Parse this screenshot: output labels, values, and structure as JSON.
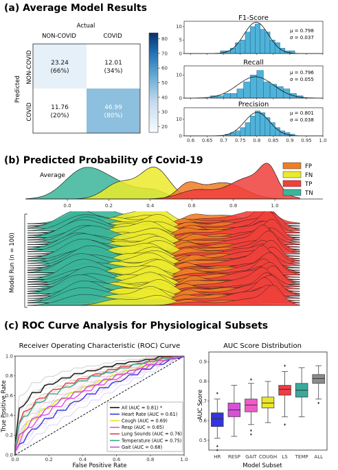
{
  "panel_a": {
    "header": "(a) Average Model Results",
    "confusion_matrix": {
      "type": "heatmap",
      "xlabel": "Actual",
      "ylabel": "Predicted",
      "columns": [
        "NON-COVID",
        "COVID"
      ],
      "rows": [
        "NON-COVID",
        "COVID"
      ],
      "values": [
        [
          23.24,
          12.01
        ],
        [
          11.76,
          46.99
        ]
      ],
      "cell_values": [
        [
          "23.24",
          "12.01"
        ],
        [
          "11.76",
          "46.99"
        ]
      ],
      "percent_labels": [
        [
          "(66%)",
          "(34%)"
        ],
        [
          "(20%)",
          "(80%)"
        ]
      ],
      "colorbar_ticks": [
        "20",
        "30",
        "40",
        "50",
        "60",
        "70",
        "80"
      ],
      "colorbar_range": [
        16,
        84
      ],
      "colors": {
        "low": "#f7fbff",
        "high": "#08306b"
      }
    },
    "histograms": {
      "type": "bar",
      "x_ticks": [
        "0.6",
        "0.65",
        "0.7",
        "0.75",
        "0.8",
        "0.85",
        "0.9",
        "0.95",
        "1.0"
      ],
      "xlim": [
        0.58,
        1.0
      ],
      "bar_color": "#4fb3d9",
      "panels": [
        {
          "title": "F1-Score",
          "mu": "μ = 0.798",
          "sigma": "σ = 0.037",
          "mean": 0.798,
          "std": 0.037,
          "bin_start": 0.69,
          "bin_width": 0.015,
          "counts": [
            1,
            1,
            2,
            4,
            5,
            8,
            10,
            11,
            9,
            8,
            5,
            4,
            2,
            1,
            1
          ],
          "y_ticks": [
            "0",
            "5",
            "10"
          ],
          "ylim": [
            0,
            12
          ]
        },
        {
          "title": "Recall",
          "mu": "μ = 0.796",
          "sigma": "σ = 0.055",
          "mean": 0.796,
          "std": 0.055,
          "bin_start": 0.66,
          "bin_width": 0.02,
          "counts": [
            1,
            1,
            2,
            2,
            4,
            7,
            10,
            12,
            7,
            6,
            5,
            4,
            2,
            1
          ],
          "y_ticks": [
            "0",
            "10"
          ],
          "ylim": [
            0,
            14
          ]
        },
        {
          "title": "Precision",
          "mu": "μ = 0.801",
          "sigma": "σ = 0.038",
          "mean": 0.801,
          "std": 0.038,
          "bin_start": 0.705,
          "bin_width": 0.015,
          "counts": [
            1,
            2,
            3,
            5,
            8,
            12,
            15,
            14,
            11,
            8,
            5,
            3,
            2,
            1
          ],
          "y_ticks": [
            "0",
            "10"
          ],
          "ylim": [
            0,
            17
          ]
        }
      ]
    }
  },
  "panel_b": {
    "header": "(b) Predicted Probability of Covid-19",
    "average_label": "Average",
    "ylabel": "Model Run (n = 100)",
    "x_ticks": [
      "0.0",
      "0.2",
      "0.4",
      "0.6",
      "0.8",
      "1.0"
    ],
    "xlim": [
      -0.2,
      1.12
    ],
    "legend": [
      {
        "name": "FP",
        "color": "#f07d25"
      },
      {
        "name": "FN",
        "color": "#ecea2c"
      },
      {
        "name": "TP",
        "color": "#f0403b"
      },
      {
        "name": "TN",
        "color": "#3bb59a"
      }
    ],
    "chart_data": {
      "type": "area",
      "series": [
        {
          "name": "TN",
          "peaks": [
            [
              0.07,
              0.09,
              0.85
            ],
            [
              0.22,
              0.11,
              0.4
            ],
            [
              0.42,
              0.06,
              0.25
            ]
          ]
        },
        {
          "name": "FN",
          "peaks": [
            [
              0.25,
              0.07,
              0.55
            ],
            [
              0.42,
              0.07,
              0.8
            ]
          ]
        },
        {
          "name": "FP",
          "peaks": [
            [
              0.58,
              0.05,
              0.45
            ],
            [
              0.75,
              0.1,
              0.42
            ]
          ]
        },
        {
          "name": "TP",
          "peaks": [
            [
              0.62,
              0.08,
              0.3
            ],
            [
              0.88,
              0.1,
              0.55
            ],
            [
              0.97,
              0.04,
              0.8
            ]
          ]
        }
      ]
    }
  },
  "panel_c": {
    "header": "(c) ROC Curve Analysis for Physiological Subsets",
    "roc": {
      "title": "Receiver Operating Characteristic (ROC) Curve",
      "xlabel": "False Positive Rate",
      "ylabel": "True Positive Rate",
      "x_ticks": [
        "0.0",
        "0.2",
        "0.4",
        "0.6",
        "0.8",
        "1.0"
      ],
      "y_ticks": [
        "0.0",
        "0.2",
        "0.4",
        "0.6",
        "0.8",
        "1.0"
      ],
      "chart_data": {
        "type": "line",
        "series": [
          {
            "name": "All (AUC = 0.81) *",
            "color": "#111111",
            "gamma": 0.22
          },
          {
            "name": "Heart Rate (AUC = 0.61)",
            "color": "#3434e0",
            "gamma": 0.62
          },
          {
            "name": "Cough (AUC = 0.69)",
            "color": "#e9e020",
            "gamma": 0.45
          },
          {
            "name": "Resp (AUC = 0.65)",
            "color": "#e34fe3",
            "gamma": 0.52
          },
          {
            "name": "Lung Sounds (AUC = 0.76)",
            "color": "#e53940",
            "gamma": 0.3
          },
          {
            "name": "Temperature (AUC = 0.75)",
            "color": "#3aaa8c",
            "gamma": 0.33
          },
          {
            "name": "Gait (AUC = 0.68)",
            "color": "#c94fd0",
            "gamma": 0.47
          }
        ]
      }
    },
    "boxplot": {
      "title": "AUC Score Distribution",
      "xlabel": "Model Subset",
      "ylabel": "AUC Score",
      "y_ticks": [
        "0.5",
        "0.6",
        "0.7",
        "0.8",
        "0.9"
      ],
      "ylim": [
        0.45,
        0.95
      ],
      "chart_data": {
        "type": "bar",
        "categories": [
          "HR",
          "RESP",
          "GAIT",
          "COUGH",
          "LS",
          "TEMP",
          "ALL"
        ],
        "colors": [
          "#3434e0",
          "#d84fd8",
          "#f05ac8",
          "#ece62a",
          "#ef3b45",
          "#3aa99a",
          "#8c8c8c"
        ],
        "stats": [
          {
            "min": 0.51,
            "q1": 0.57,
            "median": 0.61,
            "q3": 0.64,
            "max": 0.71,
            "outliers": [
              0.74,
              0.47,
              0.45
            ]
          },
          {
            "min": 0.52,
            "q1": 0.62,
            "median": 0.655,
            "q3": 0.69,
            "max": 0.78,
            "outliers": []
          },
          {
            "min": 0.58,
            "q1": 0.645,
            "median": 0.68,
            "q3": 0.71,
            "max": 0.79,
            "outliers": [
              0.81,
              0.55,
              0.53
            ]
          },
          {
            "min": 0.59,
            "q1": 0.665,
            "median": 0.69,
            "q3": 0.72,
            "max": 0.8,
            "outliers": []
          },
          {
            "min": 0.62,
            "q1": 0.73,
            "median": 0.76,
            "q3": 0.78,
            "max": 0.85,
            "outliers": [
              0.88,
              0.58
            ]
          },
          {
            "min": 0.62,
            "q1": 0.72,
            "median": 0.755,
            "q3": 0.79,
            "max": 0.87,
            "outliers": []
          },
          {
            "min": 0.71,
            "q1": 0.79,
            "median": 0.815,
            "q3": 0.835,
            "max": 0.88,
            "outliers": [
              0.69
            ]
          }
        ]
      }
    }
  }
}
